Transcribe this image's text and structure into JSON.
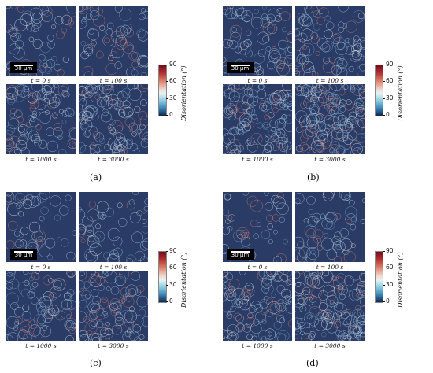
{
  "panels": [
    {
      "letter": "(a)"
    },
    {
      "letter": "(b)"
    },
    {
      "letter": "(c)"
    },
    {
      "letter": "(d)"
    }
  ],
  "time_labels": [
    "t = 0 s",
    "t = 100 s",
    "t = 1000 s",
    "t = 3000 s"
  ],
  "scale_bar": "30 µm",
  "colorbar": {
    "label": "Disorientation (°)",
    "ticks": [
      "90",
      "60",
      "30",
      "0"
    ],
    "colors": [
      "#730c1b",
      "#d97a66",
      "#e6f3f5",
      "#3b86b6",
      "#11254d"
    ]
  },
  "map_background": "#2a3c66"
}
